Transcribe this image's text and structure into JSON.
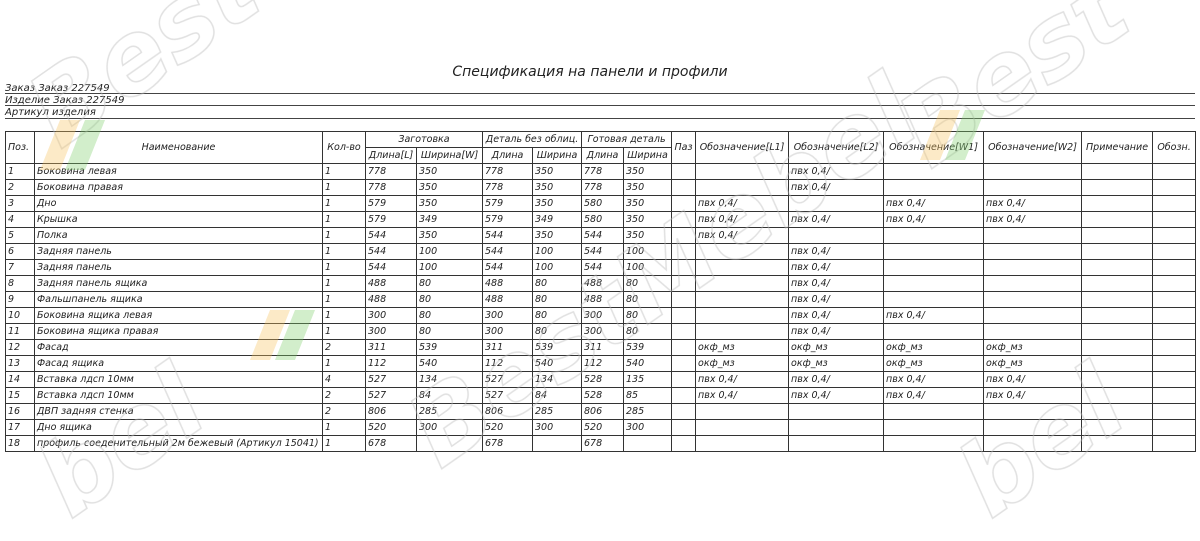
{
  "title": "Спецификация на панели и профили",
  "header": {
    "order": "Заказ Заказ 227549",
    "product": "Изделие Заказ 227549",
    "article": "Артикул изделия"
  },
  "table": {
    "headers": {
      "pos": "Поз.",
      "name": "Наименование",
      "qty": "Кол-во",
      "blank": "Заготовка",
      "blank_l": "Длина[L]",
      "blank_w": "Ширина[W]",
      "raw": "Деталь без облиц.",
      "raw_l": "Длина",
      "raw_w": "Ширина",
      "final": "Готовая деталь",
      "final_l": "Длина",
      "final_w": "Ширина",
      "groove": "Паз",
      "l1": "Обозначение[L1]",
      "l2": "Обозначение[L2]",
      "w1": "Обозначение[W1]",
      "w2": "Обозначение[W2]",
      "note": "Примечание",
      "mark": "Обозн."
    },
    "rows": [
      [
        "1",
        "Боковина левая",
        "1",
        "778",
        "350",
        "778",
        "350",
        "778",
        "350",
        "",
        "",
        "пвх 0,4/",
        "",
        "",
        "",
        ""
      ],
      [
        "2",
        "Боковина правая",
        "1",
        "778",
        "350",
        "778",
        "350",
        "778",
        "350",
        "",
        "",
        "пвх 0,4/",
        "",
        "",
        "",
        ""
      ],
      [
        "3",
        "Дно",
        "1",
        "579",
        "350",
        "579",
        "350",
        "580",
        "350",
        "",
        "пвх 0,4/",
        "",
        "пвх 0,4/",
        "пвх 0,4/",
        "",
        ""
      ],
      [
        "4",
        "Крышка",
        "1",
        "579",
        "349",
        "579",
        "349",
        "580",
        "350",
        "",
        "пвх 0,4/",
        "пвх 0,4/",
        "пвх 0,4/",
        "пвх 0,4/",
        "",
        ""
      ],
      [
        "5",
        "Полка",
        "1",
        "544",
        "350",
        "544",
        "350",
        "544",
        "350",
        "",
        "пвх 0,4/",
        "",
        "",
        "",
        "",
        ""
      ],
      [
        "6",
        "Задняя панель",
        "1",
        "544",
        "100",
        "544",
        "100",
        "544",
        "100",
        "",
        "",
        "пвх 0,4/",
        "",
        "",
        "",
        ""
      ],
      [
        "7",
        "Задняя панель",
        "1",
        "544",
        "100",
        "544",
        "100",
        "544",
        "100",
        "",
        "",
        "пвх 0,4/",
        "",
        "",
        "",
        ""
      ],
      [
        "8",
        "Задняя панель ящика",
        "1",
        "488",
        "80",
        "488",
        "80",
        "488",
        "80",
        "",
        "",
        "пвх 0,4/",
        "",
        "",
        "",
        ""
      ],
      [
        "9",
        "Фальшпанель ящика",
        "1",
        "488",
        "80",
        "488",
        "80",
        "488",
        "80",
        "",
        "",
        "пвх 0,4/",
        "",
        "",
        "",
        ""
      ],
      [
        "10",
        "Боковина ящика левая",
        "1",
        "300",
        "80",
        "300",
        "80",
        "300",
        "80",
        "",
        "",
        "пвх 0,4/",
        "пвх 0,4/",
        "",
        "",
        ""
      ],
      [
        "11",
        "Боковина ящика правая",
        "1",
        "300",
        "80",
        "300",
        "80",
        "300",
        "80",
        "",
        "",
        "пвх 0,4/",
        "",
        "",
        "",
        ""
      ],
      [
        "12",
        "Фасад",
        "2",
        "311",
        "539",
        "311",
        "539",
        "311",
        "539",
        "",
        "окф_мз",
        "окф_мз",
        "окф_мз",
        "окф_мз",
        "",
        ""
      ],
      [
        "13",
        "Фасад ящика",
        "1",
        "112",
        "540",
        "112",
        "540",
        "112",
        "540",
        "",
        "окф_мз",
        "окф_мз",
        "окф_мз",
        "окф_мз",
        "",
        ""
      ],
      [
        "14",
        "Вставка лдсп 10мм",
        "4",
        "527",
        "134",
        "527",
        "134",
        "528",
        "135",
        "",
        "пвх 0,4/",
        "пвх 0,4/",
        "пвх 0,4/",
        "пвх 0,4/",
        "",
        ""
      ],
      [
        "15",
        "Вставка лдсп 10мм",
        "2",
        "527",
        "84",
        "527",
        "84",
        "528",
        "85",
        "",
        "пвх 0,4/",
        "пвх 0,4/",
        "пвх 0,4/",
        "пвх 0,4/",
        "",
        ""
      ],
      [
        "16",
        "ДВП задняя стенка",
        "2",
        "806",
        "285",
        "806",
        "285",
        "806",
        "285",
        "",
        "",
        "",
        "",
        "",
        "",
        ""
      ],
      [
        "17",
        "Дно ящика",
        "1",
        "520",
        "300",
        "520",
        "300",
        "520",
        "300",
        "",
        "",
        "",
        "",
        "",
        "",
        ""
      ],
      [
        "18",
        "профиль соеденительный 2м бежевый (Артикул 15041)",
        "1",
        "678",
        "",
        "678",
        "",
        "678",
        "",
        "",
        "",
        "",
        "",
        "",
        "",
        ""
      ]
    ]
  },
  "watermark": {
    "text": "BestMebel",
    "subtext": "Мебель по вашим идеям"
  }
}
